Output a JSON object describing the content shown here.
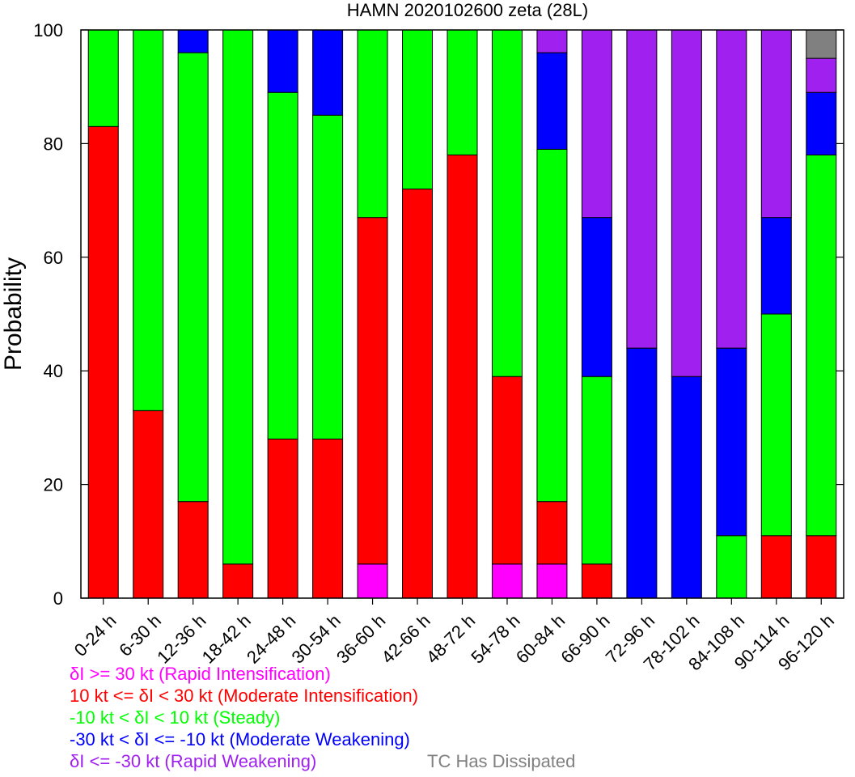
{
  "chart_data": {
    "type": "bar",
    "stacked": true,
    "title": "HAMN 2020102600 zeta (28L)",
    "xlabel": "",
    "ylabel": "Probability",
    "ylim": [
      0,
      100
    ],
    "yticks": [
      0,
      20,
      40,
      60,
      80,
      100
    ],
    "grid": false,
    "categories": [
      "0-24 h",
      "6-30 h",
      "12-36 h",
      "18-42 h",
      "24-48 h",
      "30-54 h",
      "36-60 h",
      "42-66 h",
      "48-72 h",
      "54-78 h",
      "60-84 h",
      "66-90 h",
      "72-96 h",
      "78-102 h",
      "84-108 h",
      "90-114 h",
      "96-120 h"
    ],
    "series": [
      {
        "name": "δI >= 30 kt (Rapid Intensification)",
        "color": "#ff00ff",
        "values": [
          0,
          0,
          0,
          0,
          0,
          0,
          6,
          0,
          0,
          6,
          6,
          0,
          0,
          0,
          0,
          0,
          0
        ]
      },
      {
        "name": "10 kt <= δI < 30 kt (Moderate Intensification)",
        "color": "#ff0000",
        "values": [
          83,
          33,
          17,
          6,
          28,
          28,
          61,
          72,
          78,
          33,
          11,
          6,
          0,
          0,
          0,
          11,
          11
        ]
      },
      {
        "name": "-10 kt < δI < 10 kt (Steady)",
        "color": "#00ff00",
        "values": [
          17,
          67,
          79,
          94,
          61,
          57,
          33,
          28,
          22,
          61,
          62,
          33,
          0,
          0,
          11,
          39,
          67
        ]
      },
      {
        "name": "-30 kt < δI <= -10 kt (Moderate Weakening)",
        "color": "#0000ff",
        "values": [
          0,
          0,
          4,
          0,
          11,
          15,
          0,
          0,
          0,
          0,
          17,
          28,
          44,
          39,
          33,
          17,
          11
        ]
      },
      {
        "name": "δI <= -30 kt (Rapid Weakening)",
        "color": "#a020f0",
        "values": [
          0,
          0,
          0,
          0,
          0,
          0,
          0,
          0,
          0,
          0,
          4,
          33,
          56,
          61,
          56,
          33,
          6
        ]
      },
      {
        "name": "TC Has Dissipated",
        "color": "#808080",
        "values": [
          0,
          0,
          0,
          0,
          0,
          0,
          0,
          0,
          0,
          0,
          0,
          0,
          0,
          0,
          0,
          0,
          5
        ]
      }
    ],
    "legend": {
      "placement": "bottom-left",
      "items": [
        {
          "text": "δI >= 30 kt (Rapid Intensification)",
          "color": "#ff00ff"
        },
        {
          "text": "10 kt <= δI < 30 kt (Moderate Intensification)",
          "color": "#ff0000"
        },
        {
          "text": "-10 kt < δI < 10 kt (Steady)",
          "color": "#00ff00"
        },
        {
          "text": "-30 kt < δI <= -10 kt (Moderate Weakening)",
          "color": "#0000ff"
        },
        {
          "text": "δI <= -30 kt (Rapid Weakening)",
          "color": "#a020f0"
        },
        {
          "text": "TC Has Dissipated",
          "color": "#808080"
        }
      ]
    }
  }
}
